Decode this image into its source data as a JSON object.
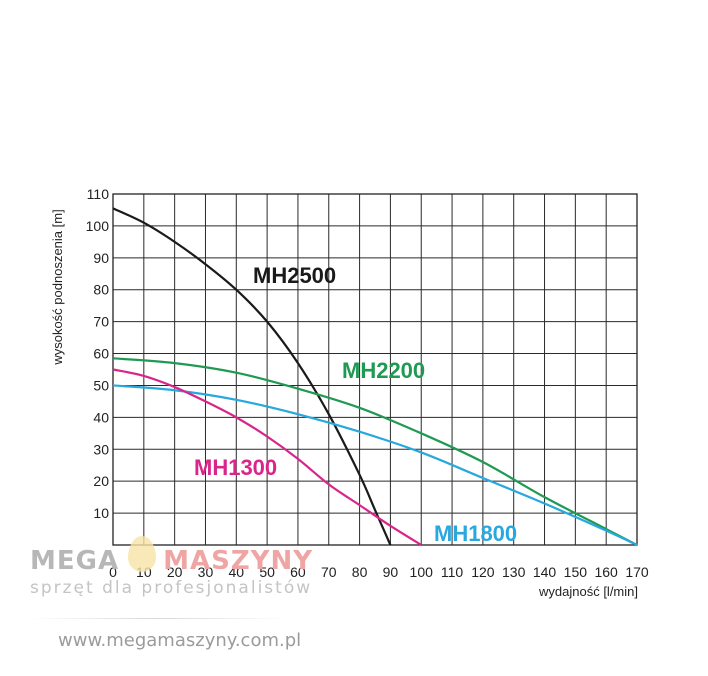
{
  "chart_data": {
    "type": "line",
    "xlabel": "wydajność [l/min]",
    "ylabel": "wysokość podnoszenia [m]",
    "xlim": [
      0,
      170
    ],
    "ylim": [
      0,
      110
    ],
    "x_ticks": [
      0,
      10,
      20,
      30,
      40,
      50,
      60,
      70,
      80,
      90,
      100,
      110,
      120,
      130,
      140,
      150,
      160,
      170
    ],
    "y_ticks": [
      10,
      20,
      30,
      40,
      50,
      60,
      70,
      80,
      90,
      100,
      110
    ],
    "grid": true,
    "series": [
      {
        "name": "MH2500",
        "color": "#1a1a1a",
        "x": [
          0,
          10,
          20,
          30,
          40,
          50,
          60,
          70,
          80,
          85,
          90
        ],
        "y": [
          105.5,
          101,
          95,
          88,
          80,
          70,
          57,
          41,
          22,
          11,
          0
        ]
      },
      {
        "name": "MH2200",
        "color": "#1f9a52",
        "x": [
          0,
          20,
          40,
          60,
          80,
          100,
          120,
          140,
          160,
          170
        ],
        "y": [
          58.5,
          57,
          54,
          49,
          43,
          35,
          26,
          15,
          5,
          0
        ]
      },
      {
        "name": "MH1800",
        "color": "#27a8de",
        "x": [
          0,
          20,
          40,
          60,
          80,
          100,
          120,
          140,
          160,
          170
        ],
        "y": [
          50,
          48.5,
          45.5,
          41,
          35.5,
          29,
          21,
          13,
          4.5,
          0
        ]
      },
      {
        "name": "MH1300",
        "color": "#d9258a",
        "x": [
          0,
          10,
          20,
          30,
          40,
          50,
          60,
          70,
          80,
          90,
          100
        ],
        "y": [
          55,
          53,
          49.5,
          45,
          40,
          34,
          27,
          19,
          12.5,
          6,
          0
        ]
      }
    ],
    "annotations": [
      {
        "text": "MH2500",
        "color": "#1a1a1a"
      },
      {
        "text": "MH2200",
        "color": "#1f9a52"
      },
      {
        "text": "MH1300",
        "color": "#d9258a"
      },
      {
        "text": "MH1800",
        "color": "#27a8de"
      }
    ]
  },
  "watermark": {
    "brand_left": "MEGA",
    "brand_right": "MASZYNY",
    "tagline": "sprzęt dla profesjonalistów",
    "url": "www.megamaszyny.com.pl"
  }
}
